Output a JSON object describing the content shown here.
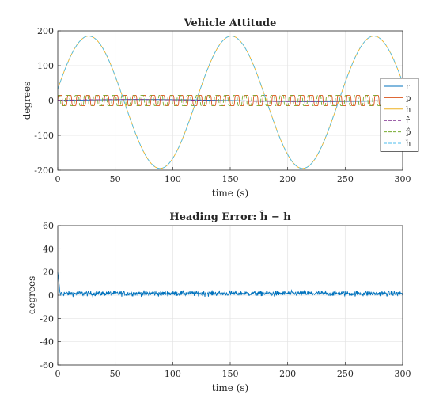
{
  "chart_data": [
    {
      "type": "line",
      "title": "Vehicle Attitude",
      "xlabel": "time (s)",
      "ylabel": "degrees",
      "xlim": [
        0,
        300
      ],
      "ylim": [
        -200,
        200
      ],
      "xticks": [
        0,
        50,
        100,
        150,
        200,
        250,
        300
      ],
      "yticks": [
        -200,
        -100,
        0,
        100,
        200
      ],
      "grid": true,
      "legend_placement": "right",
      "series": [
        {
          "name": "r",
          "color": "#0072BD",
          "dash": "solid",
          "kind": "roll",
          "amplitude": 3,
          "period": 300,
          "phase": 0
        },
        {
          "name": "p",
          "color": "#D95319",
          "dash": "solid",
          "kind": "pitch",
          "amplitude": 15,
          "period": 8.1,
          "phase": 0
        },
        {
          "name": "h",
          "color": "#EDB120",
          "dash": "solid",
          "kind": "heading",
          "amplitude": 190,
          "center": -5,
          "period": 124,
          "peak_time": 27
        },
        {
          "name": "r̂",
          "color": "#7E2F8E",
          "dash": "dashed",
          "kind": "roll",
          "amplitude": 3,
          "period": 300,
          "phase": 0.3
        },
        {
          "name": "p̂",
          "color": "#77AC30",
          "dash": "dashed",
          "kind": "pitch",
          "amplitude": 15,
          "period": 8.1,
          "phase": 0.2
        },
        {
          "name": "ĥ",
          "color": "#4DBEEE",
          "dash": "dashed",
          "kind": "heading",
          "amplitude": 190,
          "center": -5,
          "period": 124,
          "peak_time": 27
        }
      ]
    },
    {
      "type": "line",
      "title": "Heading Error: ĥ − h",
      "xlabel": "time (s)",
      "ylabel": "degrees",
      "xlim": [
        0,
        300
      ],
      "ylim": [
        -60,
        60
      ],
      "xticks": [
        0,
        50,
        100,
        150,
        200,
        250,
        300
      ],
      "yticks": [
        -60,
        -40,
        -20,
        0,
        20,
        40,
        60
      ],
      "grid": true,
      "series": [
        {
          "name": "",
          "color": "#0072BD",
          "dash": "solid",
          "kind": "noise",
          "mean": 1.5,
          "noise": 1.6,
          "initial": 20
        }
      ]
    }
  ]
}
